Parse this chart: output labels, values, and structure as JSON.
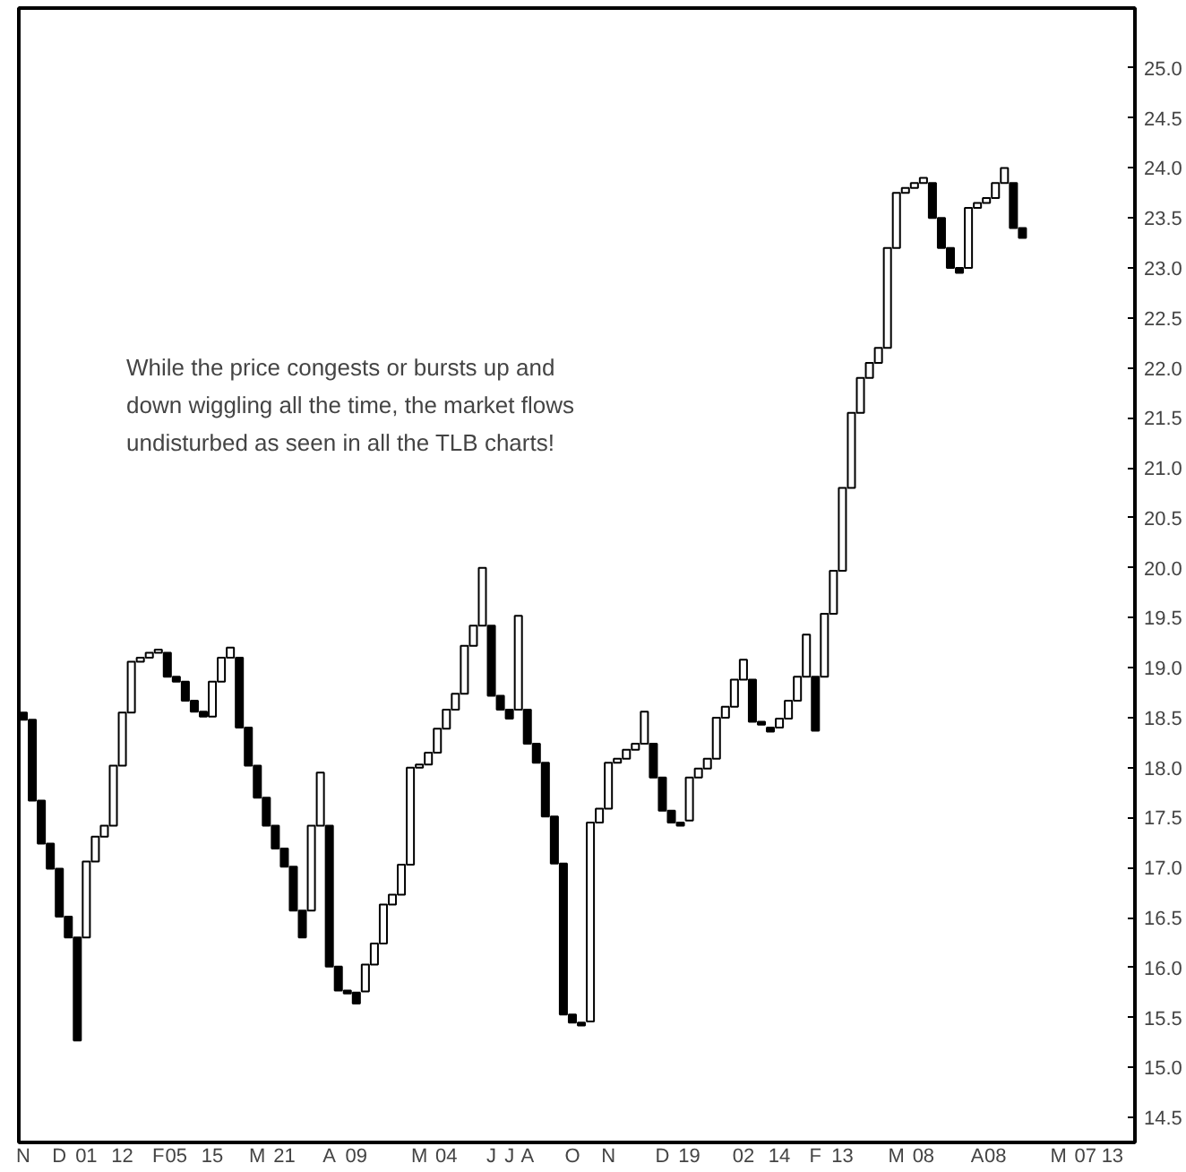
{
  "chart_data": {
    "type": "bar",
    "annotations": [
      "While the price congests or bursts up and\ndown wiggling all the time, the market flows\nundisturbed as seen in all the TLB charts!"
    ],
    "categories": [
      "N",
      null,
      null,
      null,
      "D",
      null,
      null,
      "01",
      null,
      null,
      null,
      "12",
      null,
      null,
      null,
      "F",
      null,
      "05",
      null,
      null,
      null,
      "15",
      null,
      null,
      null,
      null,
      "M",
      null,
      null,
      "21",
      null,
      null,
      null,
      null,
      "A",
      null,
      null,
      "09",
      null,
      null,
      null,
      null,
      null,
      null,
      "M",
      null,
      null,
      "04",
      null,
      null,
      null,
      null,
      "J",
      null,
      "J",
      null,
      "A",
      null,
      null,
      null,
      null,
      "O",
      null,
      null,
      null,
      "N",
      null,
      null,
      null,
      null,
      null,
      "D",
      null,
      null,
      "19",
      null,
      null,
      null,
      null,
      null,
      "02",
      null,
      null,
      null,
      "14",
      null,
      null,
      null,
      "F",
      null,
      null,
      "13",
      null,
      null,
      null,
      null,
      null,
      "M",
      null,
      null,
      "08",
      null,
      null,
      null,
      null,
      null,
      "A",
      null,
      "08",
      null,
      null,
      null,
      null,
      null,
      null,
      "M",
      null,
      null,
      "07",
      null,
      null,
      "13",
      null,
      null
    ],
    "base": [
      18.48,
      17.67,
      17.24,
      16.99,
      16.51,
      16.3,
      15.27,
      16.3,
      17.06,
      17.31,
      17.42,
      18.02,
      18.55,
      19.06,
      19.1,
      19.15,
      18.91,
      18.86,
      18.67,
      18.56,
      18.51,
      18.51,
      18.86,
      19.1,
      18.4,
      18.02,
      17.7,
      17.42,
      17.19,
      17.01,
      16.57,
      16.3,
      16.57,
      17.42,
      16.01,
      15.77,
      15.74,
      15.64,
      15.76,
      16.03,
      16.24,
      16.63,
      16.73,
      17.03,
      18.0,
      18.03,
      18.15,
      18.39,
      18.58,
      18.74,
      19.22,
      19.42,
      18.72,
      18.58,
      18.49,
      18.58,
      18.24,
      18.05,
      17.51,
      17.04,
      15.53,
      15.45,
      15.42,
      15.46,
      17.45,
      17.59,
      18.05,
      18.09,
      18.18,
      18.24,
      17.9,
      17.57,
      17.45,
      17.42,
      17.47,
      17.9,
      17.99,
      18.09,
      18.5,
      18.61,
      18.88,
      18.46,
      18.43,
      18.36,
      18.4,
      18.49,
      18.67,
      18.91,
      18.37,
      18.91,
      19.54,
      19.97,
      20.8,
      21.55,
      21.9,
      22.05,
      22.2,
      23.2,
      23.75,
      23.8,
      23.85,
      23.5,
      23.2,
      23.0,
      22.95,
      23.0,
      23.6,
      23.65,
      23.7,
      23.85,
      23.4,
      23.3,
      null,
      null,
      null,
      null,
      null,
      null,
      null,
      null,
      null,
      null,
      null,
      null
    ],
    "values": [
      0.07,
      0.81,
      0.43,
      0.25,
      0.48,
      0.21,
      1.03,
      0.76,
      0.25,
      0.11,
      0.6,
      0.53,
      0.51,
      0.04,
      0.05,
      0.03,
      0.24,
      0.05,
      0.19,
      0.11,
      0.05,
      0.35,
      0.24,
      0.1,
      0.7,
      0.38,
      0.32,
      0.28,
      0.23,
      0.18,
      0.44,
      0.27,
      0.85,
      0.53,
      1.41,
      0.24,
      0.03,
      0.11,
      0.27,
      0.21,
      0.39,
      0.1,
      0.3,
      0.97,
      0.03,
      0.12,
      0.24,
      0.19,
      0.16,
      0.48,
      0.2,
      0.58,
      0.7,
      0.14,
      0.09,
      0.94,
      0.34,
      0.19,
      0.54,
      0.47,
      1.51,
      0.08,
      0.03,
      1.99,
      0.14,
      0.46,
      0.04,
      0.09,
      0.06,
      0.32,
      0.34,
      0.33,
      0.12,
      0.03,
      0.43,
      0.09,
      0.1,
      0.41,
      0.11,
      0.27,
      0.2,
      0.42,
      0.03,
      0.04,
      0.09,
      0.18,
      0.24,
      0.42,
      0.54,
      0.63,
      0.43,
      0.83,
      0.75,
      0.35,
      0.15,
      0.15,
      1.0,
      0.55,
      0.05,
      0.05,
      0.05,
      0.35,
      0.3,
      0.2,
      0.05,
      0.6,
      0.05,
      0.05,
      0.15,
      0.15,
      0.45,
      0.1,
      null,
      null,
      null,
      null,
      null,
      null,
      null,
      null,
      null,
      null,
      null,
      null
    ],
    "colors": [
      "#000000",
      "#000000",
      "#000000",
      "#000000",
      "#000000",
      "#000000",
      "#000000",
      "#ffffff",
      "#ffffff",
      "#ffffff",
      "#ffffff",
      "#ffffff",
      "#ffffff",
      "#ffffff",
      "#ffffff",
      "#ffffff",
      "#000000",
      "#000000",
      "#000000",
      "#000000",
      "#000000",
      "#ffffff",
      "#ffffff",
      "#ffffff",
      "#000000",
      "#000000",
      "#000000",
      "#000000",
      "#000000",
      "#000000",
      "#000000",
      "#000000",
      "#ffffff",
      "#ffffff",
      "#000000",
      "#000000",
      "#000000",
      "#000000",
      "#ffffff",
      "#ffffff",
      "#ffffff",
      "#ffffff",
      "#ffffff",
      "#ffffff",
      "#ffffff",
      "#ffffff",
      "#ffffff",
      "#ffffff",
      "#ffffff",
      "#ffffff",
      "#ffffff",
      "#ffffff",
      "#000000",
      "#000000",
      "#000000",
      "#ffffff",
      "#000000",
      "#000000",
      "#000000",
      "#000000",
      "#000000",
      "#000000",
      "#000000",
      "#ffffff",
      "#ffffff",
      "#ffffff",
      "#ffffff",
      "#ffffff",
      "#ffffff",
      "#ffffff",
      "#000000",
      "#000000",
      "#000000",
      "#000000",
      "#ffffff",
      "#ffffff",
      "#ffffff",
      "#ffffff",
      "#ffffff",
      "#ffffff",
      "#ffffff",
      "#000000",
      "#000000",
      "#000000",
      "#ffffff",
      "#ffffff",
      "#ffffff",
      "#ffffff",
      "#000000",
      "#ffffff",
      "#ffffff",
      "#ffffff",
      "#ffffff",
      "#ffffff",
      "#ffffff",
      "#ffffff",
      "#ffffff",
      "#ffffff",
      "#ffffff",
      "#ffffff",
      "#ffffff",
      "#000000",
      "#000000",
      "#000000",
      "#000000",
      "#ffffff",
      "#ffffff",
      "#ffffff",
      "#ffffff",
      "#ffffff",
      "#000000",
      "#000000",
      null,
      null,
      null,
      null,
      null,
      null,
      null,
      null,
      null,
      null,
      null,
      null
    ],
    "ylim": [
      14.25,
      25.6
    ],
    "yticks": [
      {
        "value": 14.5,
        "label": "14.5"
      },
      {
        "value": 15.0,
        "label": "15.0"
      },
      {
        "value": 15.5,
        "label": "15.5"
      },
      {
        "value": 16.0,
        "label": "16.0"
      },
      {
        "value": 16.5,
        "label": "16.5"
      },
      {
        "value": 17.0,
        "label": "17.0"
      },
      {
        "value": 17.5,
        "label": "17.5"
      },
      {
        "value": 18.0,
        "label": "18.0"
      },
      {
        "value": 18.5,
        "label": "18.5"
      },
      {
        "value": 19.0,
        "label": "19.0"
      },
      {
        "value": 19.5,
        "label": "19.5"
      },
      {
        "value": 20.0,
        "label": "20.0"
      },
      {
        "value": 20.5,
        "label": "20.5"
      },
      {
        "value": 21.0,
        "label": "21.0"
      },
      {
        "value": 21.5,
        "label": "21.5"
      },
      {
        "value": 22.0,
        "label": "22.0"
      },
      {
        "value": 22.5,
        "label": "22.5"
      },
      {
        "value": 23.0,
        "label": "23.0"
      },
      {
        "value": 23.5,
        "label": "23.5"
      },
      {
        "value": 24.0,
        "label": "24.0"
      },
      {
        "value": 24.5,
        "label": "24.5"
      },
      {
        "value": 25.0,
        "label": "25.0"
      }
    ]
  }
}
